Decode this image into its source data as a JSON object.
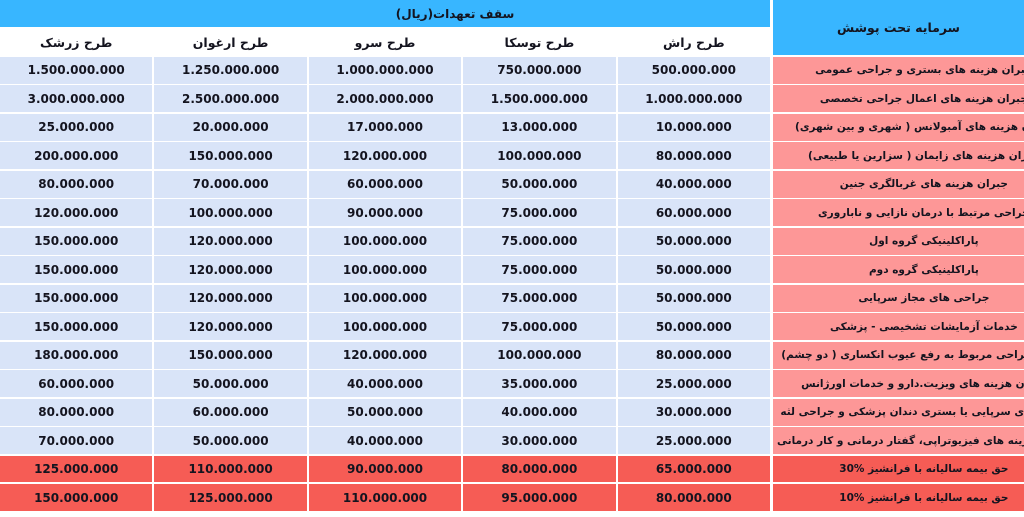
{
  "colors": {
    "header_blue": "#38b6ff",
    "value_cell": "#d9e4f8",
    "label_cell": "#fd9797",
    "premium_red": "#f65c55",
    "text_dark": "#14141f"
  },
  "chart_data": {
    "type": "table",
    "direction": "rtl",
    "title": "سقف تعهدات(ریال)",
    "row_label_header": "سرمایه تحت پوشش",
    "plan_columns_left_to_right": [
      "طرح زرشک",
      "طرح ارغوان",
      "طرح سرو",
      "طرح توسکا",
      "طرح راش"
    ],
    "rows": [
      {
        "label": "جبران هزینه های بستری و جراحی عمومی",
        "values": [
          "1.500.000.000",
          "1.250.000.000",
          "1.000.000.000",
          "750.000.000",
          "500.000.000"
        ],
        "premium": false
      },
      {
        "label": "جبران هزینه های اعمال جراحی تخصصی",
        "values": [
          "3.000.000.000",
          "2.500.000.000",
          "2.000.000.000",
          "1.500.000.000",
          "1.000.000.000"
        ],
        "premium": false
      },
      {
        "label": "جبران هزینه های آمبولانس ( شهری و بین شهری)",
        "values": [
          "25.000.000",
          "20.000.000",
          "17.000.000",
          "13.000.000",
          "10.000.000"
        ],
        "premium": false
      },
      {
        "label": "جبران هزینه های زایمان ( سزارین یا طبیعی)",
        "values": [
          "200.000.000",
          "150.000.000",
          "120.000.000",
          "100.000.000",
          "80.000.000"
        ],
        "premium": false
      },
      {
        "label": "جبران هزینه های غربالگری جنین",
        "values": [
          "80.000.000",
          "70.000.000",
          "60.000.000",
          "50.000.000",
          "40.000.000"
        ],
        "premium": false
      },
      {
        "label": "جراحی مرتبط با درمان نازایی و ناباروری",
        "values": [
          "120.000.000",
          "100.000.000",
          "90.000.000",
          "75.000.000",
          "60.000.000"
        ],
        "premium": false
      },
      {
        "label": "پاراکلینیکی گروه اول",
        "values": [
          "150.000.000",
          "120.000.000",
          "100.000.000",
          "75.000.000",
          "50.000.000"
        ],
        "premium": false
      },
      {
        "label": "پاراکلینیکی گروه دوم",
        "values": [
          "150.000.000",
          "120.000.000",
          "100.000.000",
          "75.000.000",
          "50.000.000"
        ],
        "premium": false
      },
      {
        "label": "جراحی های مجاز سرپایی",
        "values": [
          "150.000.000",
          "120.000.000",
          "100.000.000",
          "75.000.000",
          "50.000.000"
        ],
        "premium": false
      },
      {
        "label": "خدمات آزمایشات تشخیصی - پزشکی",
        "values": [
          "150.000.000",
          "120.000.000",
          "100.000.000",
          "75.000.000",
          "50.000.000"
        ],
        "premium": false
      },
      {
        "label": "جبران جراحی مربوط به رفع عیوب انکساری ( دو چشم)",
        "values": [
          "180.000.000",
          "150.000.000",
          "120.000.000",
          "100.000.000",
          "80.000.000"
        ],
        "premium": false
      },
      {
        "label": "جبران هزینه های ویزیت.دارو و خدمات اورژانس",
        "values": [
          "60.000.000",
          "50.000.000",
          "40.000.000",
          "35.000.000",
          "25.000.000"
        ],
        "premium": false
      },
      {
        "label": "هزینه های سرپایی یا بستری دندان پزشکی و جراحی لثه",
        "values": [
          "80.000.000",
          "60.000.000",
          "50.000.000",
          "40.000.000",
          "30.000.000"
        ],
        "premium": false
      },
      {
        "label": "جبران هزینه های فیزیوتراپی، گفتار درمانی و کار درمانی",
        "values": [
          "70.000.000",
          "50.000.000",
          "40.000.000",
          "30.000.000",
          "25.000.000"
        ],
        "premium": false
      },
      {
        "label": "حق بیمه سالیانه با فرانشیز %30",
        "values": [
          "125.000.000",
          "110.000.000",
          "90.000.000",
          "80.000.000",
          "65.000.000"
        ],
        "premium": true
      },
      {
        "label": "حق بیمه سالیانه با فرانشیز %10",
        "values": [
          "150.000.000",
          "125.000.000",
          "110.000.000",
          "95.000.000",
          "80.000.000"
        ],
        "premium": true
      }
    ]
  }
}
